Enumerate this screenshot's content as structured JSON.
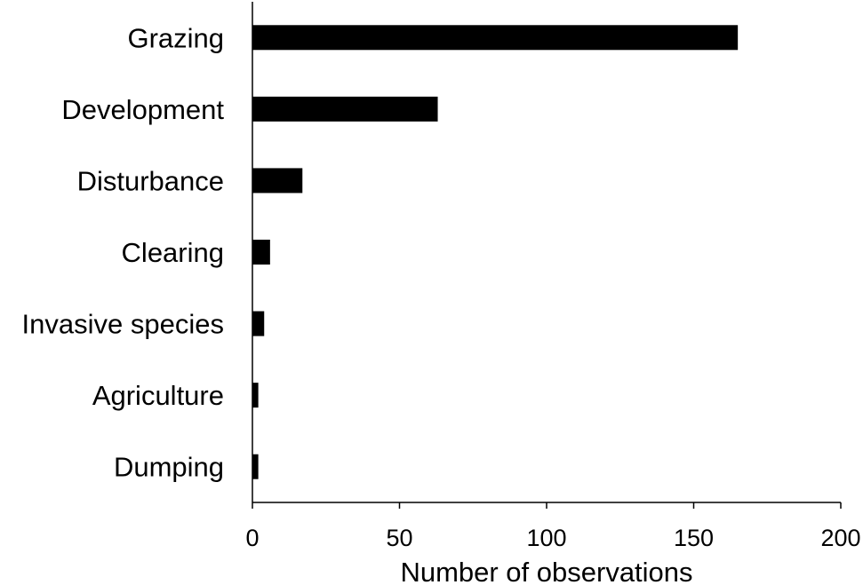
{
  "chart_data": {
    "type": "bar",
    "orientation": "horizontal",
    "categories": [
      "Grazing",
      "Development",
      "Disturbance",
      "Clearing",
      "Invasive species",
      "Agriculture",
      "Dumping"
    ],
    "values": [
      165,
      63,
      17,
      6,
      4,
      2,
      2
    ],
    "title": "",
    "xlabel": "Number of observations",
    "ylabel": "",
    "xlim": [
      0,
      200
    ],
    "xticks": [
      0,
      50,
      100,
      150,
      200
    ],
    "grid": false,
    "legend": "none",
    "bar_color": "#000000"
  }
}
